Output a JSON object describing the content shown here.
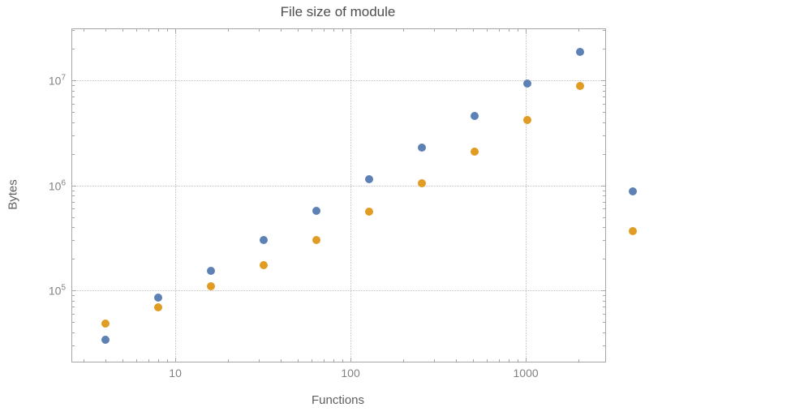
{
  "chart_data": {
    "type": "scatter",
    "title": "File size of module",
    "xlabel": "Functions",
    "ylabel": "Bytes",
    "x_scale": "log",
    "y_scale": "log",
    "grid": "dotted",
    "legend": "none",
    "xlim": [
      2.58,
      2840
    ],
    "ylim": [
      21000,
      30700000
    ],
    "x_ticks": [
      10,
      100,
      1000
    ],
    "y_tick_exponents": [
      5,
      6,
      7
    ],
    "series": [
      {
        "name": "series-1-blue",
        "color": "#5E81B5",
        "points": [
          [
            4,
            34000
          ],
          [
            8,
            85000
          ],
          [
            16,
            155000
          ],
          [
            32,
            300000
          ],
          [
            64,
            570000
          ],
          [
            128,
            1150000
          ],
          [
            256,
            2300000
          ],
          [
            512,
            4600000
          ],
          [
            1024,
            9300000
          ],
          [
            2048,
            18500000
          ],
          [
            4096,
            870000
          ]
        ]
      },
      {
        "name": "series-2-orange",
        "color": "#E19C24",
        "points": [
          [
            4,
            48000
          ],
          [
            8,
            69000
          ],
          [
            16,
            110000
          ],
          [
            32,
            175000
          ],
          [
            64,
            300000
          ],
          [
            128,
            560000
          ],
          [
            256,
            1050000
          ],
          [
            512,
            2100000
          ],
          [
            1024,
            4200000
          ],
          [
            2048,
            8800000
          ],
          [
            4096,
            370000
          ]
        ]
      }
    ]
  }
}
